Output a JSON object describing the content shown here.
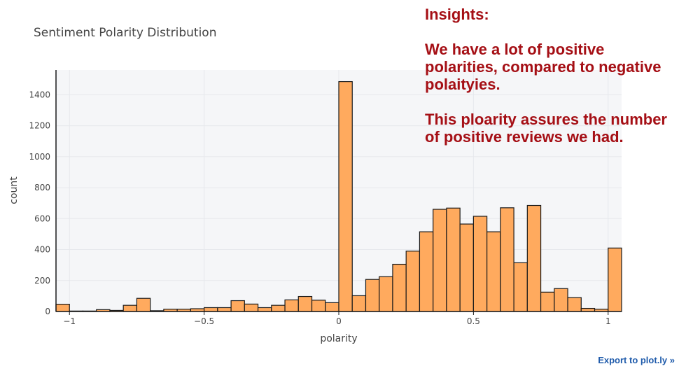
{
  "chart_data": {
    "type": "bar",
    "title": "Sentiment Polarity Distribution",
    "xlabel": "polarity",
    "ylabel": "count",
    "xlim": [
      -1.05,
      1.05
    ],
    "ylim": [
      0,
      1560
    ],
    "bin_width": 0.05,
    "x_ticks": [
      -1,
      -0.5,
      0,
      0.5,
      1
    ],
    "x_tick_labels": [
      "−1",
      "−0.5",
      "0",
      "0.5",
      "1"
    ],
    "y_ticks": [
      0,
      200,
      400,
      600,
      800,
      1000,
      1200,
      1400
    ],
    "y_tick_labels": [
      "0",
      "200",
      "400",
      "600",
      "800",
      "1000",
      "1200",
      "1400"
    ],
    "grid": true,
    "bar_color": "#ffaa5e",
    "bar_edge_color": "#1a1a1a",
    "bins": [
      {
        "x0": -1.05,
        "x1": -1.0,
        "count": 47
      },
      {
        "x0": -1.0,
        "x1": -0.95,
        "count": 3
      },
      {
        "x0": -0.95,
        "x1": -0.9,
        "count": 3
      },
      {
        "x0": -0.9,
        "x1": -0.85,
        "count": 12
      },
      {
        "x0": -0.85,
        "x1": -0.8,
        "count": 7
      },
      {
        "x0": -0.8,
        "x1": -0.75,
        "count": 40
      },
      {
        "x0": -0.75,
        "x1": -0.7,
        "count": 85
      },
      {
        "x0": -0.7,
        "x1": -0.65,
        "count": 5
      },
      {
        "x0": -0.65,
        "x1": -0.6,
        "count": 15
      },
      {
        "x0": -0.6,
        "x1": -0.55,
        "count": 15
      },
      {
        "x0": -0.55,
        "x1": -0.5,
        "count": 18
      },
      {
        "x0": -0.5,
        "x1": -0.45,
        "count": 25
      },
      {
        "x0": -0.45,
        "x1": -0.4,
        "count": 25
      },
      {
        "x0": -0.4,
        "x1": -0.35,
        "count": 70
      },
      {
        "x0": -0.35,
        "x1": -0.3,
        "count": 48
      },
      {
        "x0": -0.3,
        "x1": -0.25,
        "count": 25
      },
      {
        "x0": -0.25,
        "x1": -0.2,
        "count": 40
      },
      {
        "x0": -0.2,
        "x1": -0.15,
        "count": 75
      },
      {
        "x0": -0.15,
        "x1": -0.1,
        "count": 97
      },
      {
        "x0": -0.1,
        "x1": -0.05,
        "count": 73
      },
      {
        "x0": -0.05,
        "x1": 0.0,
        "count": 57
      },
      {
        "x0": 0.0,
        "x1": 0.05,
        "count": 1485
      },
      {
        "x0": 0.05,
        "x1": 0.1,
        "count": 102
      },
      {
        "x0": 0.1,
        "x1": 0.15,
        "count": 207
      },
      {
        "x0": 0.15,
        "x1": 0.2,
        "count": 225
      },
      {
        "x0": 0.2,
        "x1": 0.25,
        "count": 305
      },
      {
        "x0": 0.25,
        "x1": 0.3,
        "count": 390
      },
      {
        "x0": 0.3,
        "x1": 0.35,
        "count": 515
      },
      {
        "x0": 0.35,
        "x1": 0.4,
        "count": 660
      },
      {
        "x0": 0.4,
        "x1": 0.45,
        "count": 668
      },
      {
        "x0": 0.45,
        "x1": 0.5,
        "count": 565
      },
      {
        "x0": 0.5,
        "x1": 0.55,
        "count": 615
      },
      {
        "x0": 0.55,
        "x1": 0.6,
        "count": 515
      },
      {
        "x0": 0.6,
        "x1": 0.65,
        "count": 670
      },
      {
        "x0": 0.65,
        "x1": 0.7,
        "count": 315
      },
      {
        "x0": 0.7,
        "x1": 0.75,
        "count": 685
      },
      {
        "x0": 0.75,
        "x1": 0.8,
        "count": 125
      },
      {
        "x0": 0.8,
        "x1": 0.85,
        "count": 148
      },
      {
        "x0": 0.85,
        "x1": 0.9,
        "count": 90
      },
      {
        "x0": 0.9,
        "x1": 0.95,
        "count": 20
      },
      {
        "x0": 0.95,
        "x1": 1.0,
        "count": 15
      },
      {
        "x0": 1.0,
        "x1": 1.05,
        "count": 410
      }
    ]
  },
  "insights": {
    "heading": "Insights:",
    "paragraph_1": "We have a lot of positive polarities, compared to negative polaityies.",
    "paragraph_2": "This ploarity assures the number of positive reviews we had."
  },
  "export_link": {
    "label": "Export to plot.ly »"
  },
  "colors": {
    "plot_background": "#f5f6f8",
    "grid": "#e6e8ec",
    "axis_line": "#1a1a1a",
    "axis_text": "#444444",
    "title_text": "#444444",
    "insight_text": "#a50f15",
    "link": "#1f5bab"
  }
}
